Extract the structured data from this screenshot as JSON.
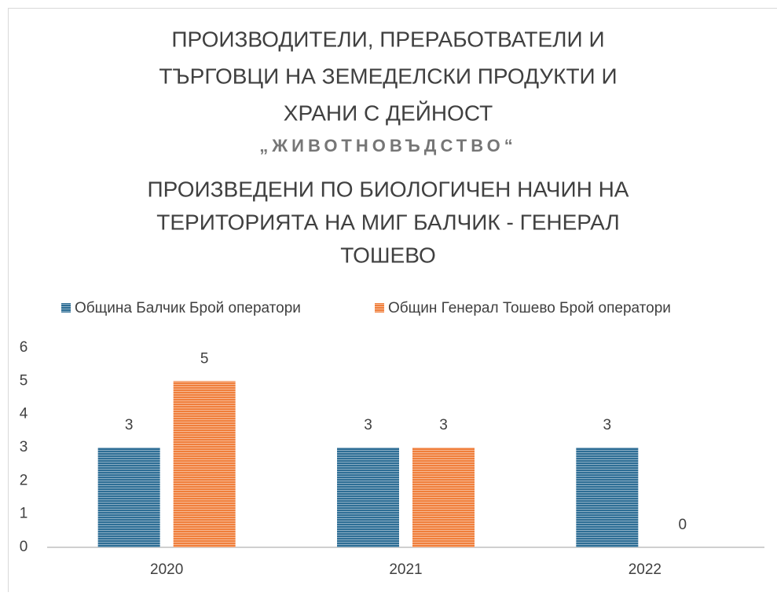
{
  "chart_data": {
    "type": "bar",
    "title": [
      "ПРОИЗВОДИТЕЛИ, ПРЕРАБОТВАТЕЛИ И",
      "ТЪРГОВЦИ НА ЗЕМЕДЕЛСКИ ПРОДУКТИ И",
      "ХРАНИ С ДЕЙНОСТ",
      "„ЖИВОТНОВЪДСТВО“",
      "ПРОИЗВЕДЕНИ ПО БИОЛОГИЧЕН НАЧИН НА",
      "ТЕРИТОРИЯТА НА МИГ БАЛЧИК - ГЕНЕРАЛ",
      "ТОШЕВО"
    ],
    "categories": [
      "2020",
      "2021",
      "2022"
    ],
    "series": [
      {
        "name": "Община Балчик Брой оператори",
        "color": "#2e6e95",
        "values": [
          3,
          3,
          3
        ]
      },
      {
        "name": "Общин Генерал Тошево Брой оператори",
        "color": "#f07f3c",
        "values": [
          5,
          3,
          0
        ]
      }
    ],
    "ylim": [
      0,
      6
    ],
    "yticks": [
      0,
      1,
      2,
      3,
      4,
      5,
      6
    ],
    "grid": false,
    "legend": "top",
    "data_labels": true
  }
}
